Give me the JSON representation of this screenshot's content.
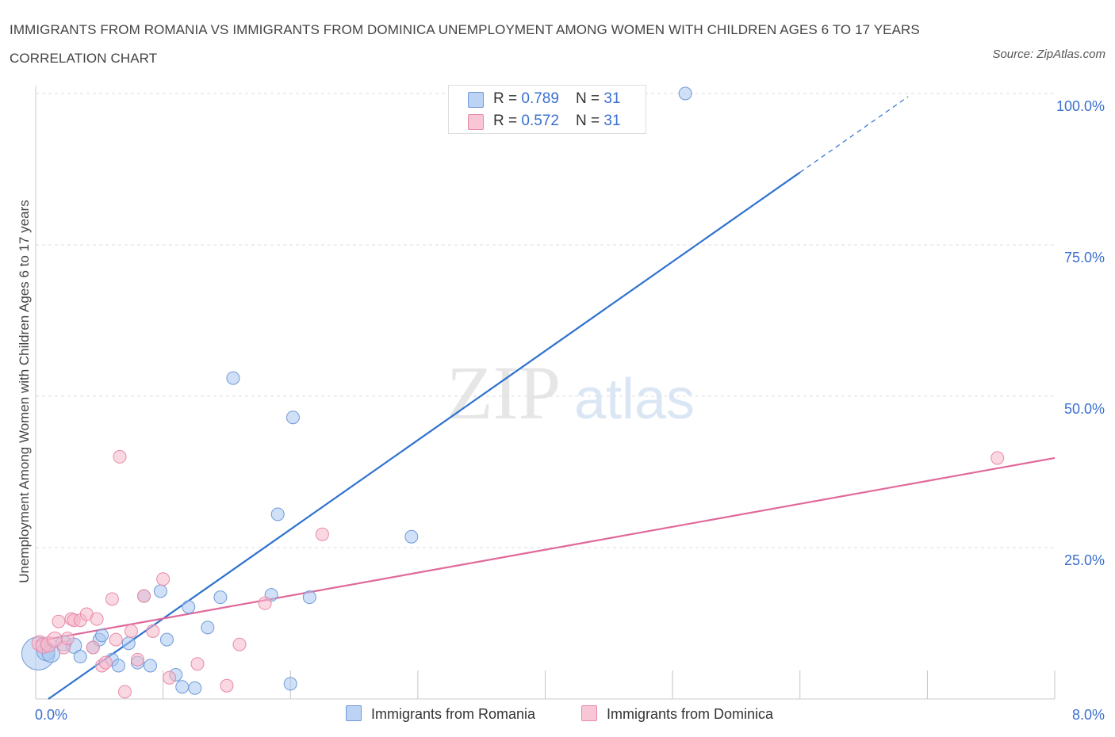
{
  "title": "IMMIGRANTS FROM ROMANIA VS IMMIGRANTS FROM DOMINICA UNEMPLOYMENT AMONG WOMEN WITH CHILDREN AGES 6 TO 17 YEARS CORRELATION CHART",
  "source": "Source: ZipAtlas.com",
  "watermark": {
    "zip": "ZIP",
    "atlas": "atlas"
  },
  "legend_top": [
    {
      "r_label": "R = ",
      "r_value": "0.789",
      "n_label": "N = ",
      "n_value": "31"
    },
    {
      "r_label": "R = ",
      "r_value": "0.572",
      "n_label": "N = ",
      "n_value": "31"
    }
  ],
  "colors": {
    "romania_fill": "#a9c6f0",
    "romania_stroke": "#6f9ad8",
    "romania_line": "#2f72cf",
    "dominica_fill": "#f6b8cb",
    "dominica_stroke": "#e889a8",
    "dominica_line": "#e0689a",
    "grid": "#dedede",
    "tick_label": "#3a6fd0"
  },
  "chart_data": {
    "type": "scatter",
    "ylabel": "Unemployment Among Women with Children Ages 6 to 17 years",
    "xlabel": "",
    "xlim": [
      0,
      8
    ],
    "ylim": [
      0,
      100
    ],
    "x_tick_labels": {
      "min": "0.0%",
      "max": "8.0%"
    },
    "y_tick_labels": [
      {
        "value": 100,
        "label": "100.0%"
      },
      {
        "value": 75,
        "label": "75.0%"
      },
      {
        "value": 50,
        "label": "50.0%"
      },
      {
        "value": 25,
        "label": "25.0%"
      }
    ],
    "grid": true,
    "legend_position": "bottom",
    "series": [
      {
        "name": "Immigrants from Romania",
        "color_key": "romania",
        "points": [
          [
            0.02,
            7.5
          ],
          [
            0.08,
            7.8
          ],
          [
            0.12,
            7.5
          ],
          [
            0.22,
            9.2
          ],
          [
            0.3,
            8.8
          ],
          [
            0.35,
            7.0
          ],
          [
            0.45,
            8.5
          ],
          [
            0.5,
            9.8
          ],
          [
            0.52,
            10.5
          ],
          [
            0.6,
            6.5
          ],
          [
            0.65,
            5.5
          ],
          [
            0.73,
            9.2
          ],
          [
            0.8,
            6.0
          ],
          [
            0.85,
            17.0
          ],
          [
            0.9,
            5.5
          ],
          [
            0.98,
            17.8
          ],
          [
            1.03,
            9.8
          ],
          [
            1.1,
            4.0
          ],
          [
            1.15,
            2.0
          ],
          [
            1.2,
            15.2
          ],
          [
            1.25,
            1.8
          ],
          [
            1.35,
            11.8
          ],
          [
            1.45,
            16.8
          ],
          [
            1.55,
            53.0
          ],
          [
            1.85,
            17.2
          ],
          [
            1.9,
            30.5
          ],
          [
            2.0,
            2.5
          ],
          [
            2.02,
            46.5
          ],
          [
            2.15,
            16.8
          ],
          [
            2.95,
            26.8
          ],
          [
            5.1,
            100.0
          ]
        ],
        "sizes": [
          26,
          14,
          14,
          12,
          12,
          10,
          10,
          10,
          10,
          10,
          10,
          10,
          10,
          10,
          10,
          10,
          10,
          10,
          10,
          10,
          10,
          10,
          10,
          10,
          10,
          10,
          10,
          10,
          10,
          10,
          10
        ],
        "trend": {
          "x": [
            0.1,
            6.85
          ],
          "y": [
            0.0,
            99.5
          ],
          "solid_until_x": 6.0
        }
      },
      {
        "name": "Immigrants from Dominica",
        "color_key": "dominica",
        "points": [
          [
            0.03,
            9.2
          ],
          [
            0.06,
            8.8
          ],
          [
            0.1,
            9.0
          ],
          [
            0.15,
            9.8
          ],
          [
            0.18,
            12.8
          ],
          [
            0.22,
            8.5
          ],
          [
            0.25,
            10.0
          ],
          [
            0.28,
            13.2
          ],
          [
            0.3,
            13.0
          ],
          [
            0.35,
            13.0
          ],
          [
            0.4,
            14.0
          ],
          [
            0.45,
            8.5
          ],
          [
            0.48,
            13.2
          ],
          [
            0.52,
            5.5
          ],
          [
            0.55,
            6.0
          ],
          [
            0.6,
            16.5
          ],
          [
            0.63,
            9.8
          ],
          [
            0.66,
            40.0
          ],
          [
            0.7,
            1.2
          ],
          [
            0.75,
            11.2
          ],
          [
            0.8,
            6.5
          ],
          [
            0.85,
            17.0
          ],
          [
            0.92,
            11.2
          ],
          [
            1.0,
            19.8
          ],
          [
            1.05,
            3.5
          ],
          [
            1.27,
            5.8
          ],
          [
            1.5,
            2.2
          ],
          [
            1.6,
            9.0
          ],
          [
            1.8,
            15.8
          ],
          [
            2.25,
            27.2
          ],
          [
            7.55,
            39.8
          ]
        ],
        "sizes": [
          12,
          12,
          12,
          12,
          10,
          10,
          10,
          10,
          10,
          10,
          10,
          10,
          10,
          10,
          10,
          10,
          10,
          10,
          10,
          10,
          10,
          10,
          10,
          10,
          10,
          10,
          10,
          10,
          10,
          10,
          10
        ],
        "trend": {
          "x": [
            0.0,
            8.0
          ],
          "y": [
            9.5,
            39.8
          ]
        }
      }
    ]
  }
}
